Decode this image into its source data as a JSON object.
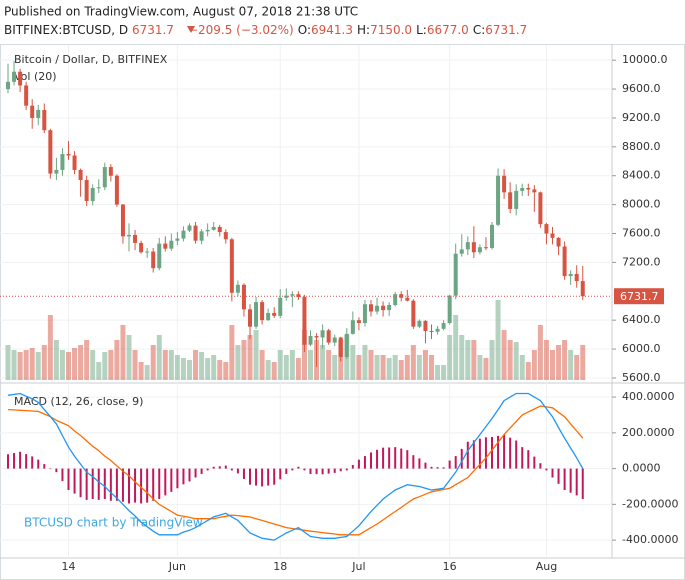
{
  "header": {
    "published": "Published on TradingView.com, August 07, 2018 21:38 UTC",
    "symbol": "BITFINEX:BTCUSD, D",
    "last": "6731.7",
    "change": "−209.5 (−3.02%)",
    "ohlc": [
      {
        "label": "O:",
        "value": "6941.3"
      },
      {
        "label": "H:",
        "value": "7150.0"
      },
      {
        "label": "L:",
        "value": "6677.0"
      },
      {
        "label": "C:",
        "value": "6731.7"
      }
    ]
  },
  "watermark": "BTCUSD chart by TradingView",
  "chart_data": [
    {
      "type": "candlestick",
      "title": "Bitcoin / Dollar, D, BITFINEX",
      "up_color": "#6ba583",
      "down_color": "#d75442",
      "grid": true,
      "open": [
        9600,
        9700,
        9840,
        9650,
        9370,
        9200,
        9310,
        9030,
        8430,
        8480,
        8700,
        8680,
        8480,
        8340,
        8050,
        8230,
        8240,
        8520,
        8400,
        8000,
        7560,
        7580,
        7470,
        7340,
        7350,
        7120,
        7460,
        7390,
        7500,
        7530,
        7640,
        7710,
        7500,
        7630,
        7650,
        7690,
        7620,
        7520,
        6780,
        6890,
        6550,
        6310,
        6650,
        6400,
        6500,
        6460,
        6710,
        6740,
        6760,
        6720,
        6060,
        6180,
        6160,
        6260,
        6090,
        6160,
        5890,
        6210,
        6400,
        6360,
        6620,
        6520,
        6600,
        6540,
        6610,
        6760,
        6710,
        6670,
        6310,
        6390,
        6250,
        6240,
        6280,
        6360,
        6740,
        7320,
        7380,
        7480,
        7340,
        7410,
        7400,
        7720,
        8400,
        8170,
        7940,
        8190,
        8230,
        8210,
        8170,
        7730,
        7600,
        7540,
        7420,
        7010,
        7040,
        6941.3
      ],
      "high": [
        9950,
        9990,
        9880,
        9700,
        9460,
        9380,
        9400,
        9050,
        8650,
        8780,
        8880,
        8740,
        8500,
        8400,
        8280,
        8350,
        8580,
        8560,
        8420,
        8010,
        7740,
        7650,
        7500,
        7400,
        7400,
        7540,
        7560,
        7600,
        7620,
        7700,
        7740,
        7760,
        7660,
        7740,
        7760,
        7720,
        7660,
        7540,
        6950,
        6910,
        6620,
        6720,
        6680,
        6560,
        6580,
        6830,
        6840,
        6800,
        6800,
        6750,
        6260,
        6220,
        6340,
        6280,
        6200,
        6170,
        6290,
        6520,
        6440,
        6680,
        6680,
        6710,
        6660,
        6650,
        6790,
        6800,
        6820,
        6690,
        6410,
        6400,
        6340,
        6320,
        6400,
        6750,
        7460,
        7590,
        7560,
        7700,
        7450,
        7550,
        7760,
        8500,
        8490,
        8310,
        8280,
        8290,
        8290,
        8270,
        8180,
        7750,
        7690,
        7550,
        7490,
        7090,
        7160,
        7150
      ],
      "low": [
        9540,
        9650,
        9560,
        9310,
        9050,
        9100,
        8990,
        8360,
        8340,
        8400,
        8620,
        8420,
        8110,
        7980,
        7990,
        8160,
        8200,
        8320,
        7970,
        7460,
        7350,
        7370,
        7320,
        7260,
        7060,
        7090,
        7350,
        7360,
        7440,
        7490,
        7620,
        7460,
        7450,
        7560,
        7640,
        7560,
        7460,
        6660,
        6730,
        6450,
        6140,
        6280,
        6340,
        6390,
        6430,
        6430,
        6670,
        6580,
        6680,
        5960,
        6040,
        5750,
        6010,
        6060,
        6040,
        5830,
        5860,
        6200,
        6260,
        6310,
        6450,
        6480,
        6450,
        6460,
        6590,
        6660,
        6660,
        6280,
        6290,
        6080,
        6140,
        6200,
        6260,
        6340,
        6690,
        7280,
        7300,
        7260,
        7310,
        7370,
        7380,
        7700,
        8080,
        7880,
        7850,
        8120,
        8120,
        7900,
        7680,
        7450,
        7450,
        7300,
        6960,
        6890,
        6850,
        6677
      ],
      "close": [
        9700,
        9840,
        9650,
        9370,
        9200,
        9310,
        9030,
        8430,
        8480,
        8700,
        8680,
        8480,
        8340,
        8050,
        8230,
        8240,
        8520,
        8400,
        8000,
        7560,
        7580,
        7470,
        7340,
        7350,
        7120,
        7460,
        7390,
        7500,
        7530,
        7640,
        7710,
        7500,
        7630,
        7650,
        7690,
        7620,
        7520,
        6780,
        6890,
        6550,
        6310,
        6650,
        6400,
        6500,
        6460,
        6710,
        6740,
        6760,
        6720,
        6060,
        6180,
        6160,
        6260,
        6090,
        6160,
        5890,
        6210,
        6400,
        6360,
        6620,
        6520,
        6600,
        6540,
        6610,
        6760,
        6710,
        6670,
        6310,
        6390,
        6250,
        6240,
        6280,
        6360,
        6740,
        7320,
        7380,
        7480,
        7340,
        7410,
        7400,
        7720,
        8400,
        8170,
        7940,
        8190,
        8230,
        8210,
        8170,
        7730,
        7600,
        7540,
        7420,
        7010,
        7040,
        6941.3,
        6731.7
      ],
      "ylim": [
        5530,
        10210
      ],
      "yticks": [
        {
          "value": 10000,
          "label": "10000.0"
        },
        {
          "value": 9600,
          "label": "9600.0"
        },
        {
          "value": 9200,
          "label": "9200.0"
        },
        {
          "value": 8800,
          "label": "8800.0"
        },
        {
          "value": 8400,
          "label": "8400.0"
        },
        {
          "value": 8000,
          "label": "8000.0"
        },
        {
          "value": 7600,
          "label": "7600.0"
        },
        {
          "value": 7200,
          "label": "7200.0"
        },
        {
          "value": 6400,
          "label": "6400.0"
        },
        {
          "value": 6000,
          "label": "6000.0"
        },
        {
          "value": 5600,
          "label": "5600.0"
        }
      ]
    },
    {
      "type": "bar",
      "title": "Vol (20)",
      "values": [
        35,
        30,
        28,
        30,
        32,
        28,
        35,
        65,
        40,
        30,
        28,
        32,
        35,
        40,
        30,
        18,
        28,
        30,
        40,
        55,
        45,
        30,
        18,
        15,
        35,
        45,
        30,
        30,
        25,
        22,
        20,
        30,
        28,
        22,
        25,
        20,
        18,
        55,
        35,
        40,
        45,
        50,
        30,
        20,
        18,
        30,
        25,
        30,
        22,
        50,
        30,
        40,
        35,
        30,
        25,
        40,
        45,
        35,
        25,
        35,
        30,
        25,
        25,
        22,
        25,
        20,
        25,
        35,
        25,
        30,
        25,
        15,
        15,
        45,
        65,
        45,
        40,
        40,
        25,
        22,
        40,
        80,
        50,
        40,
        38,
        25,
        18,
        30,
        55,
        40,
        30,
        35,
        40,
        30,
        25,
        35
      ],
      "ylim": [
        0,
        110
      ]
    },
    {
      "type": "macd",
      "title": "MACD (12, 26, close, 9)",
      "macd_color": "#2196f3",
      "signal_color": "#ff6d00",
      "histogram_color": "#c2185b",
      "grid": true,
      "macd": [
        410,
        415,
        420,
        405,
        390,
        370,
        330,
        290,
        250,
        185,
        120,
        70,
        25,
        -20,
        -45,
        -75,
        -100,
        -135,
        -165,
        -200,
        -235,
        -265,
        -300,
        -325,
        -350,
        -370,
        -370,
        -370,
        -370,
        -355,
        -345,
        -330,
        -310,
        -290,
        -270,
        -260,
        -250,
        -270,
        -290,
        -325,
        -360,
        -375,
        -390,
        -395,
        -400,
        -380,
        -360,
        -345,
        -330,
        -355,
        -380,
        -385,
        -390,
        -390,
        -390,
        -385,
        -380,
        -350,
        -320,
        -280,
        -240,
        -205,
        -170,
        -145,
        -120,
        -105,
        -90,
        -95,
        -100,
        -110,
        -120,
        -115,
        -110,
        -65,
        -20,
        40,
        100,
        145,
        190,
        235,
        280,
        330,
        380,
        400,
        420,
        420,
        420,
        400,
        380,
        335,
        290,
        230,
        170,
        115,
        60,
        0
      ],
      "signal": [
        330,
        328,
        326,
        324,
        322,
        320,
        305,
        290,
        270,
        255,
        240,
        210,
        185,
        155,
        125,
        100,
        70,
        45,
        15,
        -15,
        -40,
        -75,
        -105,
        -135,
        -170,
        -200,
        -220,
        -240,
        -260,
        -267,
        -273,
        -280,
        -280,
        -280,
        -280,
        -273,
        -267,
        -260,
        -263,
        -267,
        -270,
        -280,
        -290,
        -300,
        -310,
        -320,
        -330,
        -335,
        -340,
        -345,
        -350,
        -354,
        -358,
        -362,
        -366,
        -370,
        -370,
        -370,
        -370,
        -350,
        -330,
        -310,
        -287,
        -263,
        -240,
        -217,
        -193,
        -170,
        -157,
        -143,
        -130,
        -123,
        -117,
        -110,
        -90,
        -70,
        -50,
        -13,
        23,
        60,
        103,
        147,
        190,
        227,
        263,
        300,
        317,
        333,
        350,
        345,
        340,
        315,
        290,
        250,
        210,
        170
      ],
      "histogram": [
        80,
        87,
        94,
        81,
        68,
        50,
        25,
        0,
        -20,
        -70,
        -120,
        -140,
        -160,
        -175,
        -170,
        -175,
        -170,
        -180,
        -180,
        -185,
        -195,
        -190,
        -195,
        -190,
        -180,
        -170,
        -150,
        -130,
        -110,
        -88,
        -72,
        -50,
        -30,
        -10,
        10,
        13,
        17,
        -10,
        -27,
        -58,
        -90,
        -95,
        -100,
        -95,
        -90,
        -60,
        -30,
        -10,
        10,
        -10,
        -30,
        -31,
        -32,
        -28,
        -24,
        -15,
        -10,
        20,
        50,
        70,
        90,
        105,
        117,
        118,
        120,
        112,
        103,
        75,
        57,
        33,
        10,
        8,
        7,
        45,
        70,
        110,
        150,
        158,
        167,
        175,
        177,
        183,
        190,
        173,
        157,
        120,
        103,
        67,
        30,
        -10,
        -50,
        -85,
        -120,
        -135,
        -150,
        -170
      ],
      "ylim": [
        -500,
        473
      ],
      "yticks": [
        {
          "value": 400,
          "label": "400.0000"
        },
        {
          "value": 200,
          "label": "200.0000"
        },
        {
          "value": 0,
          "label": "0.0000"
        },
        {
          "value": -200,
          "label": "-200.0000"
        },
        {
          "value": -400,
          "label": "-400.0000"
        }
      ],
      "xticks": [
        {
          "value": 10,
          "label": "14"
        },
        {
          "value": 28,
          "label": "Jun"
        },
        {
          "value": 45,
          "label": "18"
        },
        {
          "value": 58,
          "label": "Jul"
        },
        {
          "value": 73,
          "label": "16"
        },
        {
          "value": 89,
          "label": "Aug"
        }
      ]
    }
  ]
}
